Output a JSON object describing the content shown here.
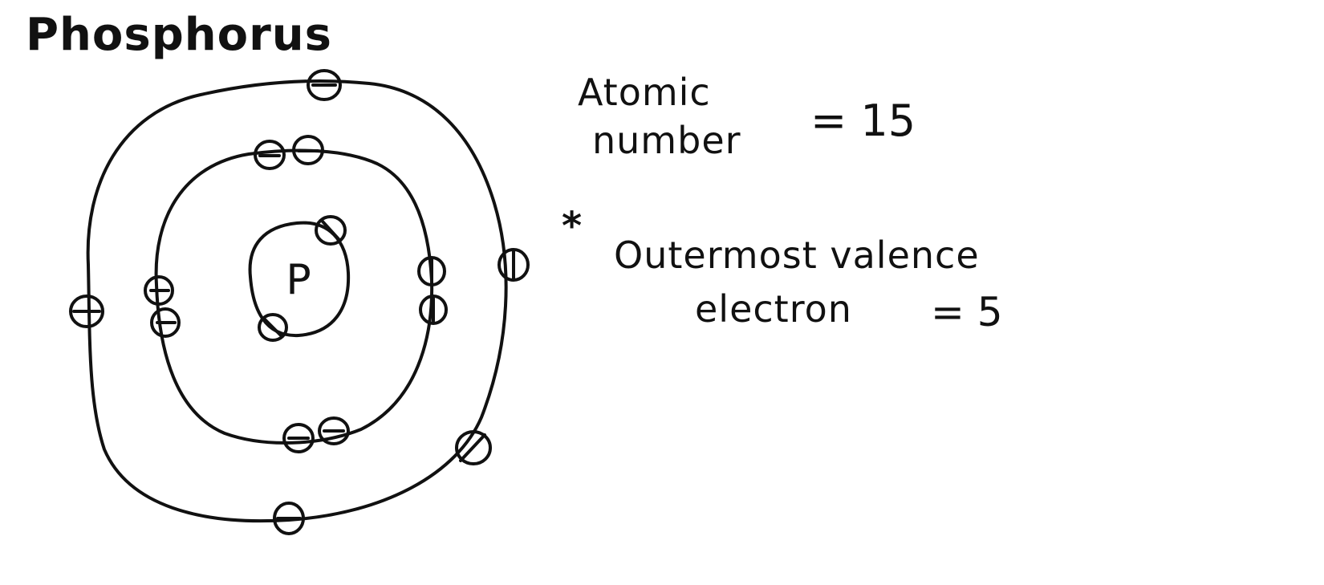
{
  "title": "Phosphorus",
  "nucleus": {
    "symbol": "P"
  },
  "shells": [
    {
      "name": "first",
      "electrons": 2
    },
    {
      "name": "second",
      "electrons": 8
    },
    {
      "name": "third",
      "electrons": 5
    }
  ],
  "atomic_number": {
    "label_line1": "Atomic",
    "label_line2": "number",
    "value": "= 15"
  },
  "valence": {
    "marker": "*",
    "label_line1": "Outermost valence",
    "label_line2": "electron",
    "value": "= 5"
  }
}
